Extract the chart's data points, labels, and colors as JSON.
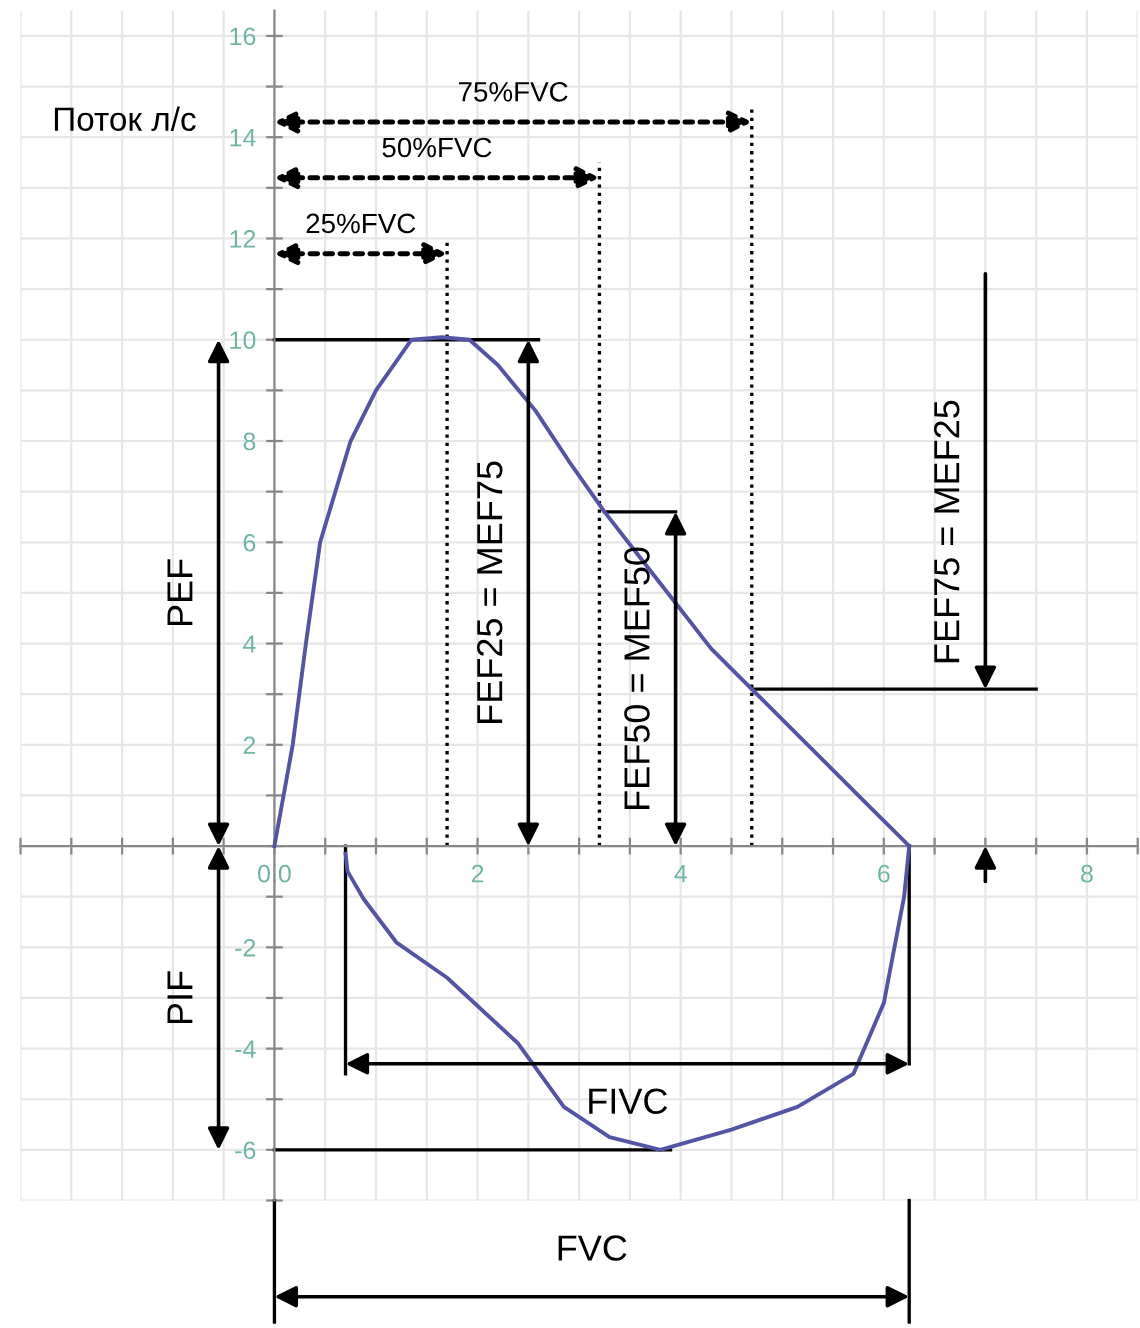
{
  "chart_data": {
    "type": "line",
    "ylabel": "Поток л/с",
    "series": [
      {
        "color": "#5454a6",
        "x": [
          0,
          0.18,
          0.31,
          0.45,
          0.75,
          1.0,
          1.35,
          1.65,
          1.92,
          2.2,
          2.57,
          2.9,
          3.25,
          3.6,
          3.95,
          4.3,
          4.7,
          5.1,
          5.5,
          5.8,
          6.1,
          6.25
        ],
        "values": [
          0,
          2,
          4,
          6,
          8,
          9,
          10,
          10.05,
          10,
          9.5,
          8.6,
          7.6,
          6.6,
          5.7,
          4.8,
          3.9,
          3.1,
          2.3,
          1.5,
          0.9,
          0.3,
          0
        ]
      },
      {
        "color": "#5454a6",
        "x": [
          0.7,
          0.72,
          0.88,
          1.2,
          1.7,
          2.4,
          2.85,
          3.3,
          3.8,
          4.5,
          5.15,
          5.7,
          6.0,
          6.2,
          6.25
        ],
        "values": [
          -0.15,
          -0.5,
          -1.05,
          -1.9,
          -2.6,
          -3.9,
          -5.15,
          -5.75,
          -6.0,
          -5.6,
          -5.15,
          -4.5,
          -3.1,
          -1.0,
          0
        ]
      }
    ],
    "xlim": [
      -2.5,
      8.5
    ],
    "ylim": [
      -7,
      16.5
    ],
    "xticks": [
      {
        "value": -2.5,
        "label": null
      },
      {
        "value": -2,
        "label": null
      },
      {
        "value": -1.5,
        "label": null
      },
      {
        "value": -1,
        "label": null
      },
      {
        "value": -0.5,
        "label": null
      },
      {
        "value": 0,
        "label": "0.0"
      },
      {
        "value": 0.5,
        "label": null
      },
      {
        "value": 1,
        "label": null
      },
      {
        "value": 1.5,
        "label": null
      },
      2,
      {
        "value": 2.5,
        "label": null
      },
      {
        "value": 3,
        "label": null
      },
      {
        "value": 3.5,
        "label": null
      },
      4,
      {
        "value": 4.5,
        "label": null
      },
      {
        "value": 5,
        "label": null
      },
      {
        "value": 5.5,
        "label": null
      },
      6,
      {
        "value": 6.5,
        "label": null
      },
      {
        "value": 7,
        "label": null
      },
      {
        "value": 7.5,
        "label": null
      },
      8,
      {
        "value": 8.5,
        "label": null
      }
    ],
    "yticks": [
      {
        "value": -7,
        "label": null
      },
      -6,
      {
        "value": -5,
        "label": null
      },
      -4,
      {
        "value": -3,
        "label": null
      },
      -2,
      {
        "value": -1,
        "label": null
      },
      {
        "value": 0,
        "label": null
      },
      {
        "value": 1,
        "label": null
      },
      2,
      {
        "value": 3,
        "label": null
      },
      4,
      {
        "value": 5,
        "label": null
      },
      6,
      {
        "value": 7,
        "label": null
      },
      8,
      {
        "value": 9,
        "label": null
      },
      10,
      {
        "value": 11,
        "label": null
      },
      12,
      {
        "value": 13,
        "label": null
      },
      14,
      {
        "value": 15,
        "label": null
      },
      16
    ],
    "grid": true,
    "marker": "none",
    "line_style": "solid",
    "annotations": [
      "FEF25 = MEF75",
      "75%FVC",
      "50%FVC",
      "PEF",
      "PIF",
      "FVC",
      "FIVC"
    ],
    "ref_lines": [
      {
        "axis": "x",
        "value": 4.7,
        "line_style": "dotted",
        "color": "#000000"
      },
      {
        "axis": "x",
        "value": 3.2,
        "line_style": "dotted",
        "color": "#000000"
      },
      {
        "axis": "x",
        "value": 1.7,
        "label": "25%FVC",
        "line_style": "dotted",
        "color": "#000000"
      },
      {
        "axis": "y",
        "value": 10,
        "line_style": "solid",
        "color": "#000000"
      },
      {
        "axis": "y",
        "value": 6.6,
        "label": "FEF50 = MEF50",
        "line_style": "solid",
        "color": "#000000"
      },
      {
        "axis": "y",
        "value": 3.1,
        "label": "FEF75 = MEF25",
        "line_style": "solid",
        "color": "#000000"
      },
      {
        "axis": "y",
        "value": -6,
        "line_style": "solid",
        "color": "#000000"
      },
      {
        "axis": "x",
        "value": 6.25,
        "line_style": "solid",
        "color": "#000000"
      },
      {
        "axis": "x",
        "value": 0.7,
        "line_style": "solid",
        "color": "#000000"
      }
    ]
  }
}
